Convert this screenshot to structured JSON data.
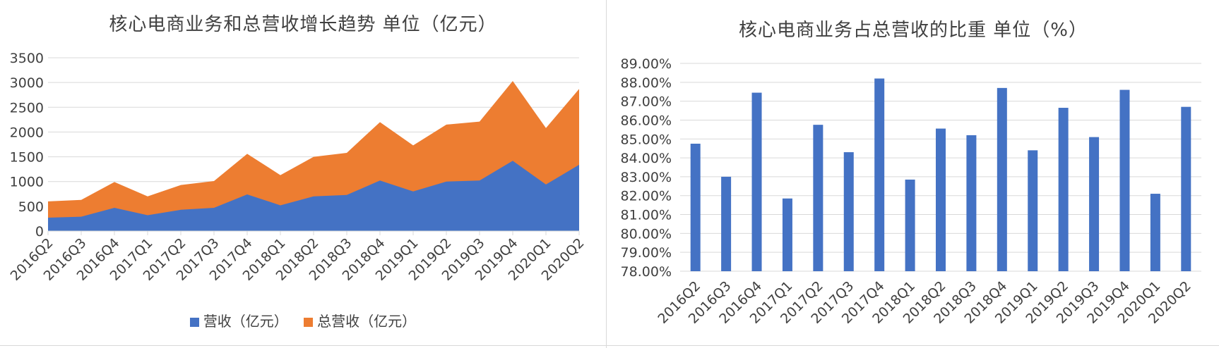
{
  "colors": {
    "revenue": "#4472c4",
    "total": "#ed7d31",
    "grid": "#d9d9d9",
    "text": "#404040"
  },
  "chart_data": [
    {
      "type": "area",
      "title": "核心电商业务和总营收增长趋势 单位（亿元）",
      "xlabel": "",
      "ylabel": "",
      "categories": [
        "2016Q2",
        "2016Q3",
        "2016Q4",
        "2017Q1",
        "2017Q2",
        "2017Q3",
        "2017Q4",
        "2018Q1",
        "2018Q2",
        "2018Q3",
        "2018Q4",
        "2019Q1",
        "2019Q2",
        "2019Q3",
        "2019Q4",
        "2020Q1",
        "2020Q2"
      ],
      "series": [
        {
          "name": "营收（亿元）",
          "values": [
            270,
            290,
            470,
            320,
            430,
            470,
            740,
            520,
            700,
            730,
            1020,
            800,
            1000,
            1020,
            1420,
            940,
            1340
          ]
        },
        {
          "name": "总营收（亿元）",
          "values": [
            600,
            630,
            990,
            700,
            930,
            1010,
            1560,
            1130,
            1500,
            1580,
            2200,
            1730,
            2150,
            2210,
            3030,
            2080,
            2870
          ]
        }
      ],
      "stacked": false,
      "ylim": [
        0,
        3500
      ],
      "yticks": [
        "0",
        "500",
        "1000",
        "1500",
        "2000",
        "2500",
        "3000",
        "3500"
      ],
      "grid": true,
      "legend": "bottom"
    },
    {
      "type": "bar",
      "title": "核心电商业务占总营收的比重 单位（%）",
      "xlabel": "",
      "ylabel": "",
      "categories": [
        "2016Q2",
        "2016Q3",
        "2016Q4",
        "2017Q1",
        "2017Q2",
        "2017Q3",
        "2017Q4",
        "2018Q1",
        "2018Q2",
        "2018Q3",
        "2018Q4",
        "2019Q1",
        "2019Q2",
        "2019Q3",
        "2019Q4",
        "2020Q1",
        "2020Q2"
      ],
      "values": [
        84.75,
        83.0,
        87.45,
        81.85,
        85.75,
        84.3,
        88.2,
        82.85,
        85.55,
        85.2,
        87.7,
        84.4,
        86.65,
        85.1,
        87.6,
        82.1,
        86.7
      ],
      "ylim": [
        78,
        89
      ],
      "yticks": [
        "78.00%",
        "79.00%",
        "80.00%",
        "81.00%",
        "82.00%",
        "83.00%",
        "84.00%",
        "85.00%",
        "86.00%",
        "87.00%",
        "88.00%",
        "89.00%"
      ],
      "grid": true,
      "legend": "none"
    }
  ]
}
